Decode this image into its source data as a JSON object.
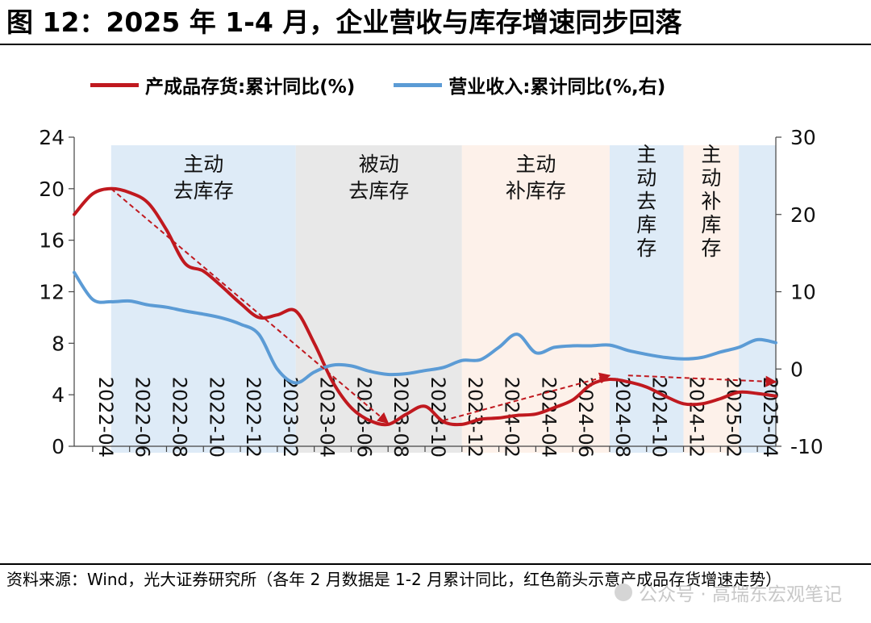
{
  "figure": {
    "title": "图 12：2025 年 1-4 月，企业营收与库存增速同步回落",
    "source": "资料来源：Wind，光大证券研究所（各年 2 月数据是 1-2 月累计同比，红色箭头示意产成品存货增速走势）",
    "watermark": "公众号 · 高瑞东宏观笔记"
  },
  "chart_data": {
    "type": "line",
    "title": "",
    "xlabel": "",
    "ylabel": "",
    "x_tick_labels": [
      "2022-04",
      "2022-06",
      "2022-08",
      "2022-10",
      "2022-12",
      "2023-02",
      "2023-04",
      "2023-06",
      "2023-08",
      "2023-10",
      "2023-12",
      "2024-02",
      "2024-04",
      "2024-06",
      "2024-08",
      "2024-10",
      "2024-12",
      "2025-02",
      "2025-04"
    ],
    "ylim_left": [
      0,
      24
    ],
    "yticks_left": [
      0,
      4,
      8,
      12,
      16,
      20,
      24
    ],
    "ylim_right": [
      -10,
      30
    ],
    "yticks_right": [
      -10,
      0,
      10,
      20,
      30
    ],
    "legend_position": "top",
    "grid": false,
    "series": [
      {
        "name": "产成品存货:累计同比(%)",
        "axis": "left",
        "color": "#c0191f",
        "points": [
          [
            "2022-03",
            18.0
          ],
          [
            "2022-04",
            19.6
          ],
          [
            "2022-05",
            20.0
          ],
          [
            "2022-06",
            19.7
          ],
          [
            "2022-07",
            18.9
          ],
          [
            "2022-08",
            16.8
          ],
          [
            "2022-09",
            14.2
          ],
          [
            "2022-10",
            13.6
          ],
          [
            "2022-11",
            12.4
          ],
          [
            "2022-12",
            11.1
          ],
          [
            "2023-01",
            10.0
          ],
          [
            "2023-02",
            10.2
          ],
          [
            "2023-03",
            10.5
          ],
          [
            "2023-04",
            8.0
          ],
          [
            "2023-05",
            5.0
          ],
          [
            "2023-06",
            3.0
          ],
          [
            "2023-07",
            2.0
          ],
          [
            "2023-08",
            1.7
          ],
          [
            "2023-09",
            2.5
          ],
          [
            "2023-10",
            3.1
          ],
          [
            "2023-11",
            1.9
          ],
          [
            "2023-12",
            1.7
          ],
          [
            "2024-01",
            2.1
          ],
          [
            "2024-02",
            2.2
          ],
          [
            "2024-03",
            2.4
          ],
          [
            "2024-04",
            2.5
          ],
          [
            "2024-05",
            3.0
          ],
          [
            "2024-06",
            3.6
          ],
          [
            "2024-07",
            4.8
          ],
          [
            "2024-08",
            5.2
          ],
          [
            "2024-09",
            5.0
          ],
          [
            "2024-10",
            4.6
          ],
          [
            "2024-11",
            3.9
          ],
          [
            "2024-12",
            3.3
          ],
          [
            "2025-01",
            3.3
          ],
          [
            "2025-02",
            3.7
          ],
          [
            "2025-03",
            4.2
          ],
          [
            "2025-04",
            4.1
          ],
          [
            "2025-05",
            3.9
          ]
        ]
      },
      {
        "name": "营业收入:累计同比(%,右)",
        "axis": "right",
        "color": "#5b9bd5",
        "points": [
          [
            "2022-03",
            12.5
          ],
          [
            "2022-04",
            9.0
          ],
          [
            "2022-05",
            8.7
          ],
          [
            "2022-06",
            8.8
          ],
          [
            "2022-07",
            8.3
          ],
          [
            "2022-08",
            8.0
          ],
          [
            "2022-09",
            7.5
          ],
          [
            "2022-10",
            7.1
          ],
          [
            "2022-11",
            6.6
          ],
          [
            "2022-12",
            5.8
          ],
          [
            "2023-01",
            4.5
          ],
          [
            "2023-02",
            0.0
          ],
          [
            "2023-03",
            -1.8
          ],
          [
            "2023-04",
            -0.4
          ],
          [
            "2023-05",
            0.5
          ],
          [
            "2023-06",
            0.4
          ],
          [
            "2023-07",
            -0.3
          ],
          [
            "2023-08",
            -0.7
          ],
          [
            "2023-09",
            -0.6
          ],
          [
            "2023-10",
            -0.2
          ],
          [
            "2023-11",
            0.2
          ],
          [
            "2023-12",
            1.1
          ],
          [
            "2024-01",
            1.2
          ],
          [
            "2024-02",
            2.8
          ],
          [
            "2024-03",
            4.5
          ],
          [
            "2024-04",
            2.1
          ],
          [
            "2024-05",
            2.8
          ],
          [
            "2024-06",
            3.0
          ],
          [
            "2024-07",
            3.0
          ],
          [
            "2024-08",
            3.1
          ],
          [
            "2024-09",
            2.4
          ],
          [
            "2024-10",
            1.9
          ],
          [
            "2024-11",
            1.5
          ],
          [
            "2024-12",
            1.3
          ],
          [
            "2025-01",
            1.5
          ],
          [
            "2025-02",
            2.2
          ],
          [
            "2025-03",
            2.8
          ],
          [
            "2025-04",
            3.8
          ],
          [
            "2025-05",
            3.4
          ]
        ]
      }
    ],
    "regions": [
      {
        "label": "主动\n去库存",
        "label_layout": "horizontal",
        "from": "2022-05",
        "to": "2023-03",
        "color": "#deebf7"
      },
      {
        "label": "被动\n去库存",
        "label_layout": "horizontal",
        "from": "2023-03",
        "to": "2023-12",
        "color": "#e8e8e8"
      },
      {
        "label": "主动\n补库存",
        "label_layout": "horizontal",
        "from": "2023-12",
        "to": "2024-08",
        "color": "#fdf1ea"
      },
      {
        "label": "主动去库存",
        "label_layout": "vertical",
        "from": "2024-08",
        "to": "2024-12",
        "color": "#deebf7"
      },
      {
        "label": "主动补库存",
        "label_layout": "vertical",
        "from": "2024-12",
        "to": "2025-03",
        "color": "#fdf1ea"
      },
      {
        "label": "",
        "label_layout": "none",
        "from": "2025-03",
        "to": "2025-05",
        "color": "#deebf7"
      }
    ],
    "annotations": [
      {
        "type": "arrow",
        "color": "#c0191f",
        "style": "dashed",
        "from": [
          "2022-05",
          20.0
        ],
        "to": [
          "2023-08",
          1.8
        ]
      },
      {
        "type": "arrow",
        "color": "#c0191f",
        "style": "dashed",
        "from": [
          "2023-11",
          2.0
        ],
        "to": [
          "2024-08",
          5.5
        ]
      },
      {
        "type": "arrow",
        "color": "#c0191f",
        "style": "dashed",
        "from": [
          "2024-09",
          5.5
        ],
        "to": [
          "2025-05",
          5.0
        ]
      }
    ]
  }
}
